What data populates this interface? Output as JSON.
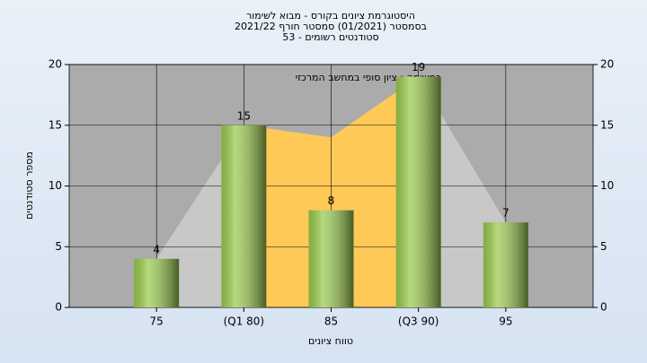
{
  "chart_data": {
    "type": "bar",
    "title": "היסטוגרמת ציונים בקורס - מבוא לשימור",
    "subtitle": "בסמסטר  (01/2021)  סמסטר חורף 2021/22",
    "subtitle2": "סטודנטים רשומים - 53",
    "annotation": "במשימה : ציון סופי במחשב המרכזי",
    "x_label": "טווח ציונים",
    "y_label": "מספר סטודנטים",
    "categories": [
      "75",
      "(Q1 80)",
      "85",
      "(Q3 90)",
      "95"
    ],
    "values": [
      4,
      15,
      8,
      19,
      7
    ],
    "color": "#9ccc50",
    "areas": [
      {
        "color": "#c8c8c8",
        "values": [
          4,
          15,
          14,
          19,
          7
        ]
      },
      {
        "color": "#ffc957",
        "values": [
          null,
          15,
          14,
          19,
          null
        ]
      }
    ],
    "ylim": [
      0,
      20
    ],
    "yticks": [
      0,
      5,
      10,
      15,
      20
    ],
    "y2lim": [
      0,
      20
    ],
    "y2ticks": [
      0,
      5,
      10,
      15,
      20
    ],
    "grid": true
  }
}
